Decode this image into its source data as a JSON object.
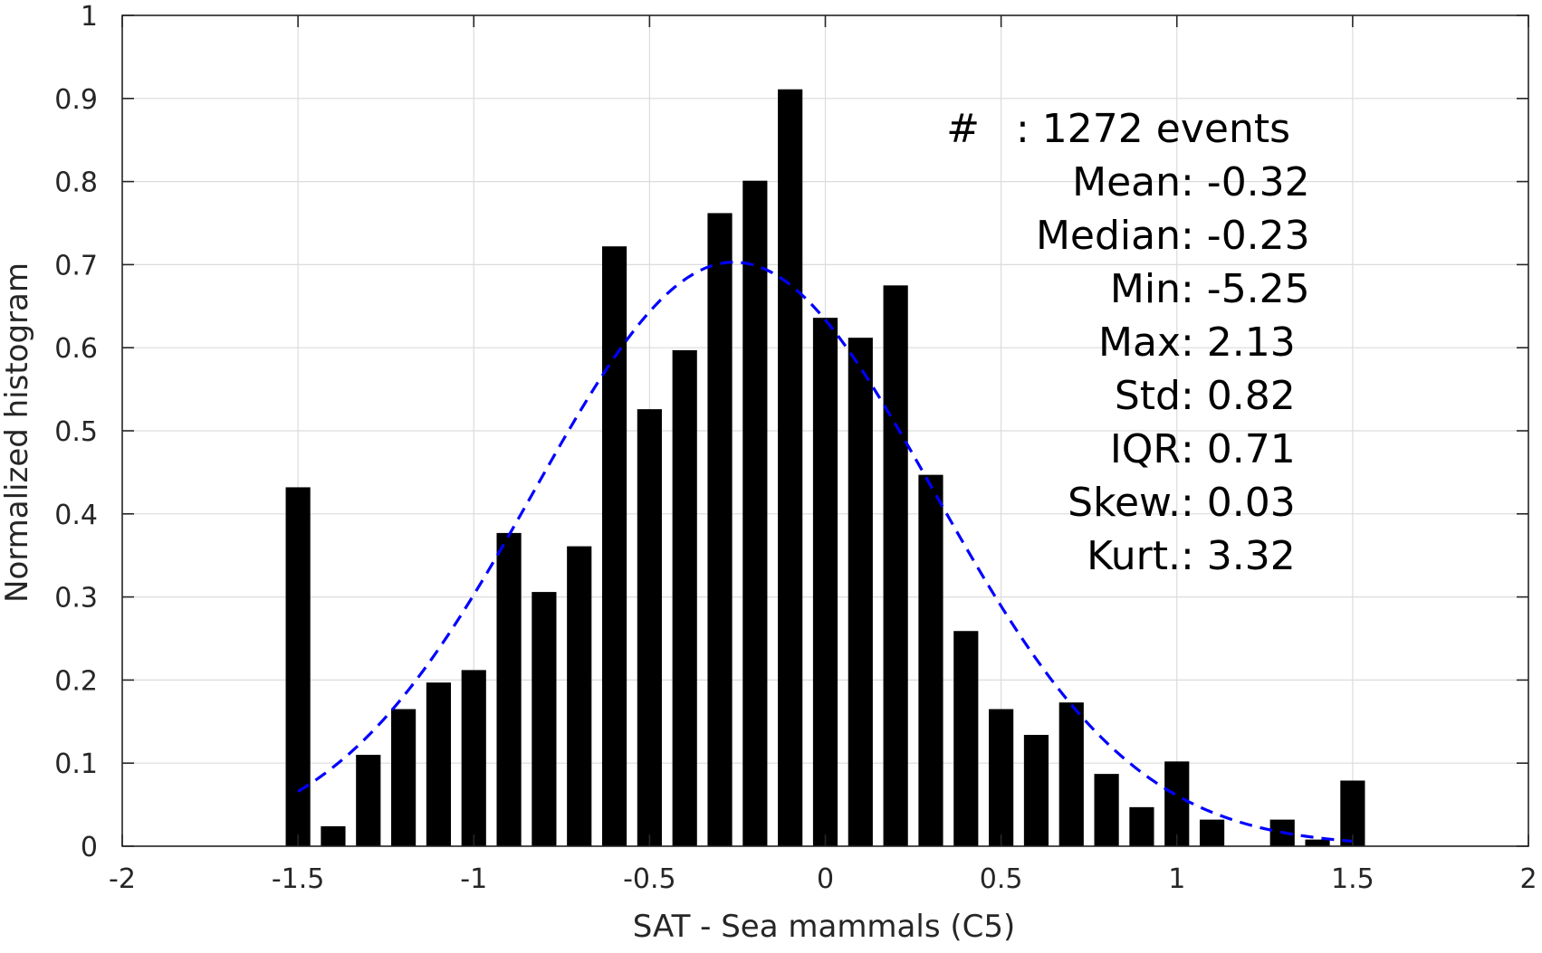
{
  "chart_data": {
    "type": "bar",
    "xlabel": "SAT - Sea mammals (C5)",
    "ylabel": "Normalized histogram",
    "xlim": [
      -2,
      2
    ],
    "ylim": [
      0,
      1
    ],
    "grid": true,
    "x_ticks": [
      -2,
      -1.5,
      -1,
      -0.5,
      0,
      0.5,
      1,
      1.5,
      2
    ],
    "x_tick_labels": [
      "-2",
      "-1.5",
      "-1",
      "-0.5",
      "0",
      "0.5",
      "1",
      "1.5",
      "2"
    ],
    "y_ticks": [
      0,
      0.1,
      0.2,
      0.3,
      0.4,
      0.5,
      0.6,
      0.7,
      0.8,
      0.9,
      1
    ],
    "y_tick_labels": [
      "0",
      "0.1",
      "0.2",
      "0.3",
      "0.4",
      "0.5",
      "0.6",
      "0.7",
      "0.8",
      "0.9",
      "1"
    ],
    "bar_color": "#000000",
    "bar_width": 0.07,
    "x": [
      -1.5,
      -1.4,
      -1.3,
      -1.2,
      -1.1,
      -1.0,
      -0.9,
      -0.8,
      -0.7,
      -0.6,
      -0.5,
      -0.4,
      -0.3,
      -0.2,
      -0.1,
      0.0,
      0.1,
      0.2,
      0.3,
      0.4,
      0.5,
      0.6,
      0.7,
      0.8,
      0.9,
      1.0,
      1.1,
      1.2,
      1.3,
      1.4,
      1.5
    ],
    "values": [
      0.432,
      0.024,
      0.11,
      0.165,
      0.197,
      0.212,
      0.377,
      0.306,
      0.361,
      0.722,
      0.526,
      0.597,
      0.762,
      0.801,
      0.911,
      0.636,
      0.612,
      0.675,
      0.447,
      0.259,
      0.165,
      0.134,
      0.173,
      0.087,
      0.047,
      0.102,
      0.032,
      0.0,
      0.032,
      0.008,
      0.079
    ],
    "fit_curve": {
      "style": "dashed",
      "color": "#0000ff",
      "mean": -0.26,
      "std": 0.57,
      "x_range": [
        -1.5,
        1.5
      ]
    },
    "annotation": {
      "lines": [
        {
          "label": "#",
          "sep": ": ",
          "value": "1272 events"
        },
        {
          "label": "Mean",
          "sep": " : ",
          "value": "-0.32"
        },
        {
          "label": "Median",
          "sep": " : ",
          "value": "-0.23"
        },
        {
          "label": "Min",
          "sep": " : ",
          "value": "-5.25"
        },
        {
          "label": "Max",
          "sep": " : ",
          "value": "2.13"
        },
        {
          "label": "Std",
          "sep": " : ",
          "value": "0.82"
        },
        {
          "label": "IQR",
          "sep": " : ",
          "value": "0.71"
        },
        {
          "label": "Skew.",
          "sep": " : ",
          "value": "0.03"
        },
        {
          "label": "Kurt.",
          "sep": " : ",
          "value": "3.32"
        }
      ]
    }
  }
}
